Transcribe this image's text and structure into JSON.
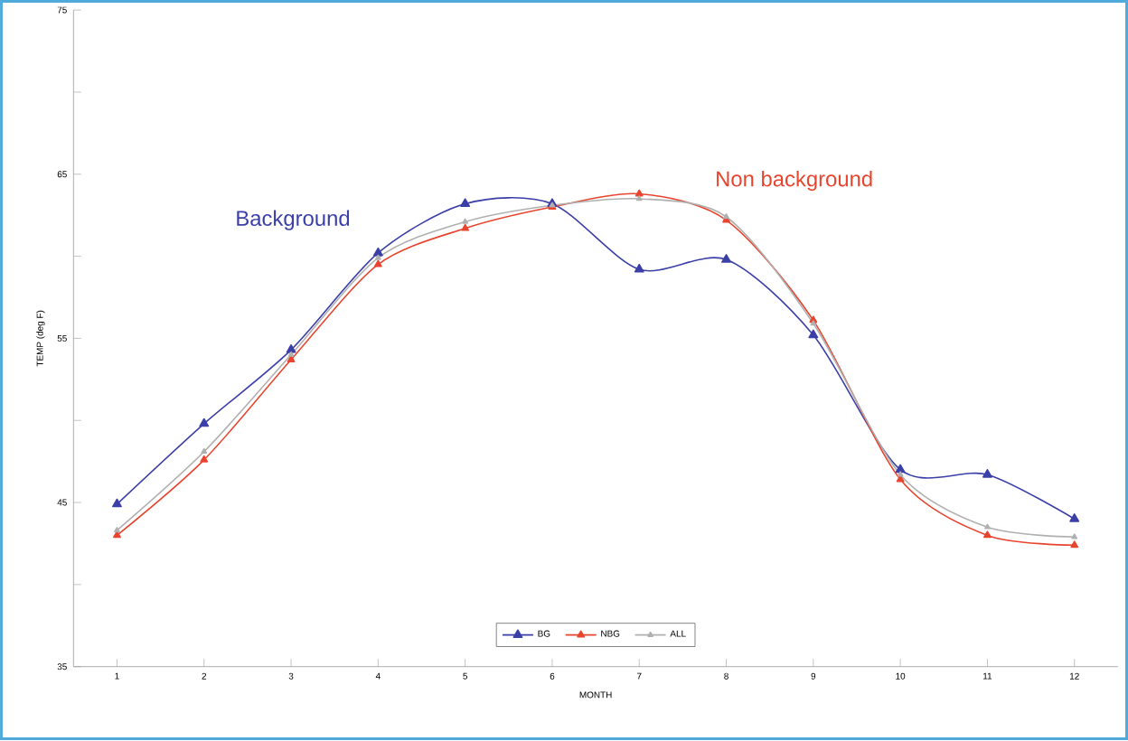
{
  "chart_data": {
    "type": "line",
    "xlabel": "MONTH",
    "ylabel": "TEMP (deg F)",
    "x": [
      1,
      2,
      3,
      4,
      5,
      6,
      7,
      8,
      9,
      10,
      11,
      12
    ],
    "series": [
      {
        "name": "BG",
        "color": "#3b3fa8",
        "values": [
          44.9,
          49.8,
          54.3,
          60.2,
          63.2,
          63.2,
          59.2,
          59.8,
          55.2,
          47.0,
          46.7,
          44.0
        ]
      },
      {
        "name": "NBG",
        "color": "#e8452f",
        "values": [
          43.0,
          47.6,
          53.7,
          59.5,
          61.7,
          63.0,
          63.8,
          62.2,
          56.1,
          46.4,
          43.0,
          42.4
        ]
      },
      {
        "name": "ALL",
        "color": "#b0b0b0",
        "values": [
          43.3,
          48.1,
          54.0,
          59.9,
          62.1,
          63.1,
          63.5,
          62.4,
          55.9,
          46.7,
          43.5,
          42.9
        ]
      }
    ],
    "annotations": [
      "Background",
      "Non background"
    ],
    "xlim": [
      0.5,
      12.5
    ],
    "ylim": [
      35,
      75
    ],
    "xticks": [
      1,
      2,
      3,
      4,
      5,
      6,
      7,
      8,
      9,
      10,
      11,
      12
    ],
    "yticks": [
      35,
      {
        "value": 40,
        "label": null
      },
      45,
      {
        "value": 50,
        "label": null
      },
      55,
      {
        "value": 60,
        "label": null
      },
      65,
      {
        "value": 70,
        "label": null
      },
      75
    ],
    "marker": "triangle",
    "legend": "bottom",
    "grid": false
  }
}
